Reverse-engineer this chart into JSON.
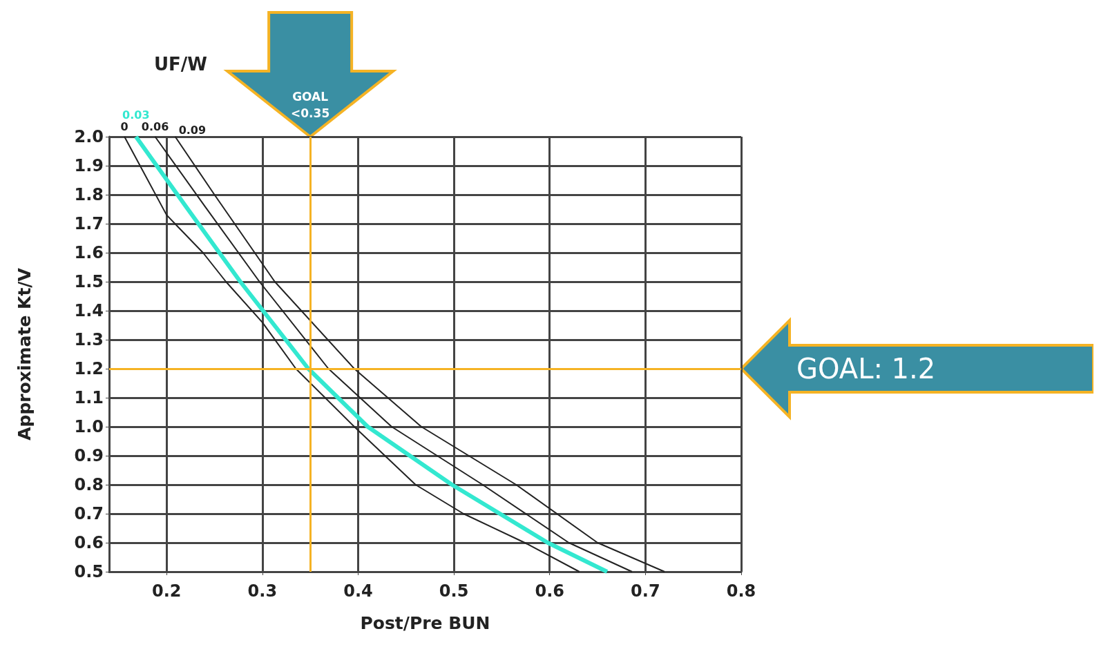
{
  "chart_data": {
    "type": "line",
    "xlabel": "Post/Pre BUN",
    "ylabel": "Approximate Kt/V",
    "legend_title": "UF/W",
    "xlim": [
      0.14,
      0.8
    ],
    "xticks": [
      0.2,
      0.3,
      0.4,
      0.5,
      0.6,
      0.7,
      0.8
    ],
    "ylim": [
      0.5,
      2.0
    ],
    "yticks": [
      0.5,
      0.6,
      0.7,
      0.8,
      0.9,
      {
        "value": 1.0,
        "label": "1.0"
      },
      1.1,
      1.2,
      1.3,
      1.4,
      1.5,
      1.6,
      1.7,
      1.8,
      1.9,
      {
        "value": 2.0,
        "label": "2.0"
      }
    ],
    "grid": true,
    "marker": "none",
    "line_style": "solid",
    "series": [
      {
        "name": "0",
        "color": "#222222",
        "x": [
          0.156,
          0.2,
          0.238,
          0.262,
          0.3,
          0.335,
          0.396,
          0.46,
          0.51,
          0.574,
          0.631
        ],
        "values": [
          2.0,
          1.73,
          1.6,
          1.5,
          1.36,
          1.2,
          1.0,
          0.8,
          0.7,
          0.6,
          0.5
        ]
      },
      {
        "name": "0.03",
        "color": "#33e8d0",
        "x": [
          0.168,
          0.22,
          0.277,
          0.348,
          0.41,
          0.498,
          0.598,
          0.66
        ],
        "values": [
          2.0,
          1.76,
          1.5,
          1.2,
          1.0,
          0.8,
          0.6,
          0.5
        ]
      },
      {
        "name": "0.06",
        "color": "#222222",
        "x": [
          0.188,
          0.24,
          0.297,
          0.369,
          0.435,
          0.53,
          0.62,
          0.686
        ],
        "values": [
          2.0,
          1.76,
          1.5,
          1.2,
          1.0,
          0.8,
          0.6,
          0.5
        ]
      },
      {
        "name": "0.09",
        "color": "#222222",
        "x": [
          0.209,
          0.25,
          0.313,
          0.396,
          0.466,
          0.565,
          0.65,
          0.72
        ],
        "values": [
          2.0,
          1.8,
          1.5,
          1.2,
          1.0,
          0.8,
          0.6,
          0.5
        ]
      }
    ],
    "ref_lines": [
      {
        "axis": "x",
        "value": 0.35,
        "label": "GOAL\n<0.35",
        "color": "#f5b324"
      },
      {
        "axis": "y",
        "value": 1.2,
        "label": "GOAL: 1.2",
        "color": "#f5b324"
      }
    ]
  }
}
